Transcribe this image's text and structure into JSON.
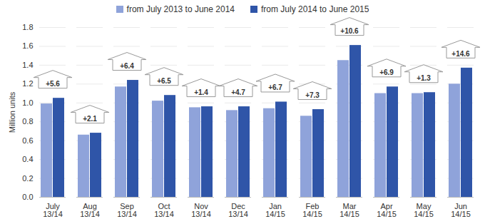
{
  "chart_data": {
    "type": "bar",
    "y_label": "Million units",
    "categories": [
      "July\n13/14",
      "Aug\n13/14",
      "Sep\n13/14",
      "Oct\n13/14",
      "Nov\n13/14",
      "Dec\n13/14",
      "Jan\n14/15",
      "Feb\n14/15",
      "Mar\n14/15",
      "Apr\n14/15",
      "May\n14/15",
      "Jun\n14/15"
    ],
    "series": [
      {
        "name": "from July 2013 to June 2014",
        "color": "#8fa3da",
        "values": [
          0.99,
          0.66,
          1.17,
          1.02,
          0.95,
          0.92,
          0.94,
          0.86,
          1.45,
          1.1,
          1.1,
          1.2
        ]
      },
      {
        "name": "from July 2014 to June 2015",
        "color": "#2f55a8",
        "values": [
          1.05,
          0.68,
          1.24,
          1.08,
          0.96,
          0.96,
          1.01,
          0.93,
          1.61,
          1.17,
          1.11,
          1.37
        ]
      }
    ],
    "annotations": [
      "+5.6",
      "+2.1",
      "+6.4",
      "+6.5",
      "+1.4",
      "+4.7",
      "+6.7",
      "+7.3",
      "+10.6",
      "+6.9",
      "+1.3",
      "+14.6"
    ],
    "ylim": [
      0,
      1.8
    ],
    "yticks": [
      {
        "value": 0,
        "label": "0.0"
      },
      0.2,
      0.4,
      0.6,
      0.8,
      {
        "value": 1,
        "label": "1.0"
      },
      1.2,
      1.4,
      1.6,
      1.8
    ],
    "grid": true,
    "legend": "top"
  }
}
